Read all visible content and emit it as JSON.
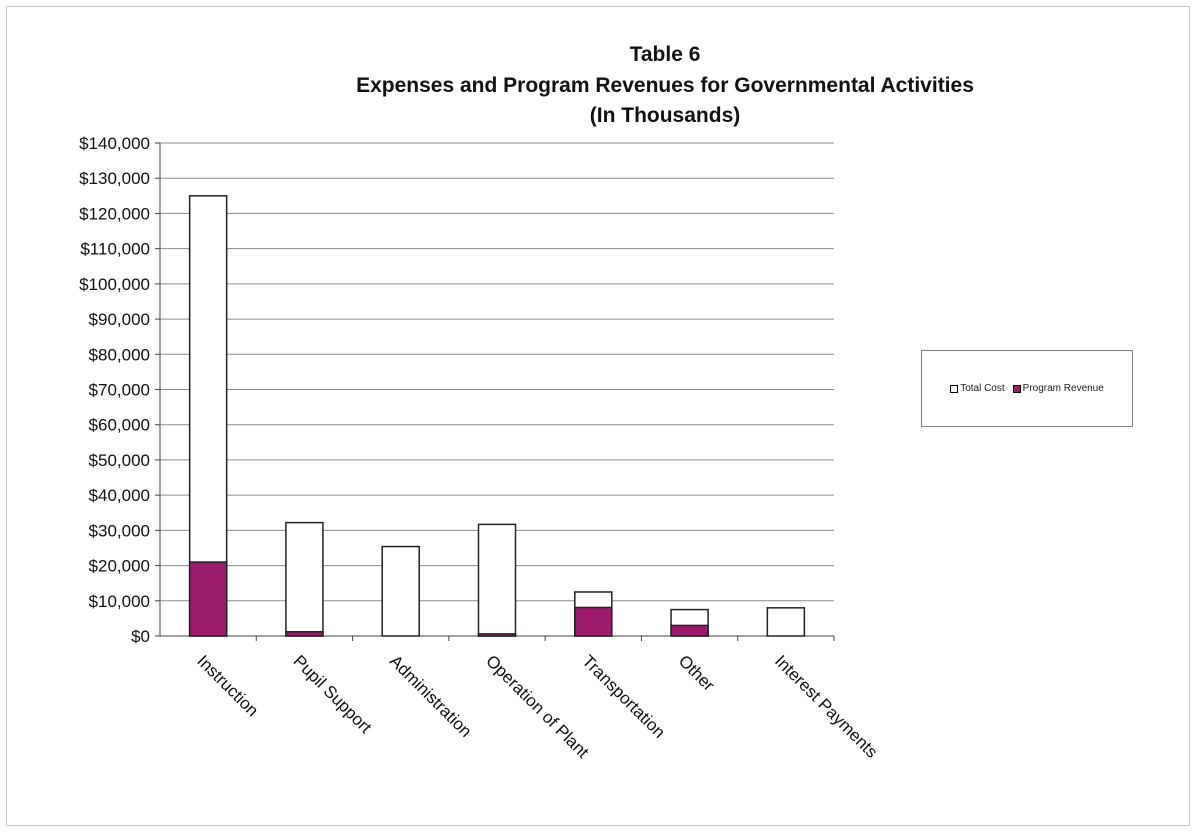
{
  "chart_data": {
    "type": "bar",
    "stacked": true,
    "title": "Table 6",
    "subtitle": "Expenses and Program Revenues for Governmental Activities",
    "subtitle2": "(In Thousands)",
    "xlabel": "",
    "ylabel": "",
    "categories": [
      "Instruction",
      "Pupil Support",
      "Administration",
      "Operation of Plant",
      "Transportation",
      "Other",
      "Interest Payments"
    ],
    "yticks": [
      "$0",
      "$10,000",
      "$20,000",
      "$30,000",
      "$40,000",
      "$50,000",
      "$60,000",
      "$70,000",
      "$80,000",
      "$90,000",
      "$100,000",
      "$110,000",
      "$120,000",
      "$130,000",
      "$140,000"
    ],
    "ylim": [
      0,
      140000
    ],
    "grid": true,
    "legend_position": "right",
    "series": [
      {
        "name": "Total Cost",
        "values": [
          125000,
          32200,
          25400,
          31700,
          12500,
          7500,
          8000
        ],
        "color": "#ffffff"
      },
      {
        "name": "Program Revenue",
        "values": [
          21000,
          1200,
          0,
          600,
          8100,
          3000,
          0
        ],
        "color": "#9b1a6e"
      }
    ]
  }
}
